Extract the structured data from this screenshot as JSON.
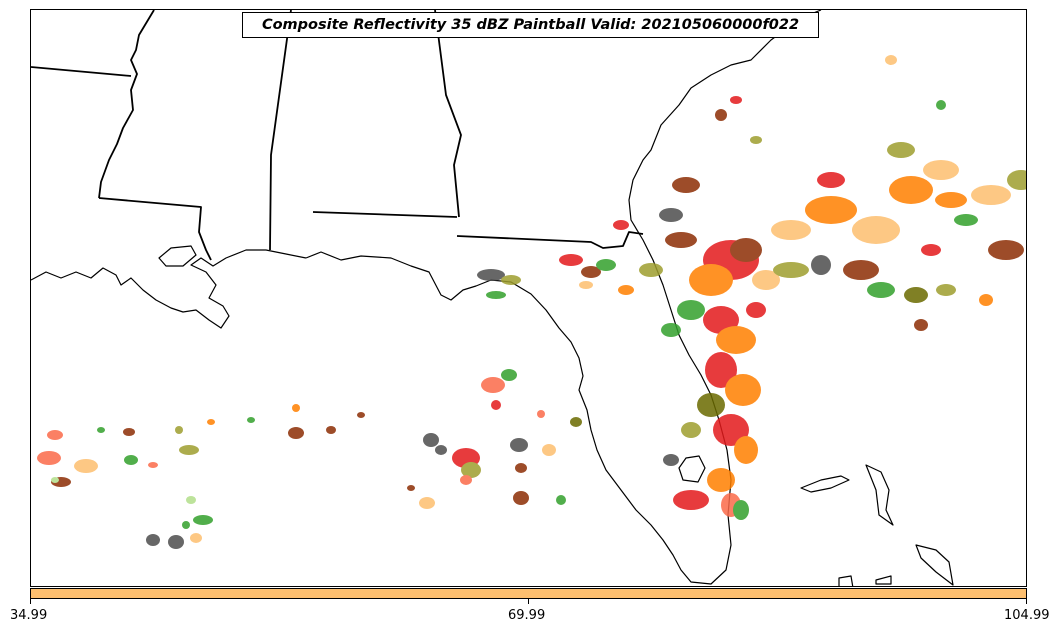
{
  "title": "Composite Reflectivity 35 dBZ Paintball Valid: 202105060000f022",
  "colorbar": {
    "color": "#fdbf6f",
    "ticks": [
      "34.99",
      "69.99",
      "104.99"
    ]
  },
  "colors": {
    "coastline": "#000000",
    "paintball_members": [
      "#e31a1c",
      "#ff7f00",
      "#fdbf6f",
      "#b2df8a",
      "#33a02c",
      "#8c2d04",
      "#6a6a00",
      "#4d4d4d",
      "#fb6a4a",
      "#9e9e2e"
    ]
  }
}
